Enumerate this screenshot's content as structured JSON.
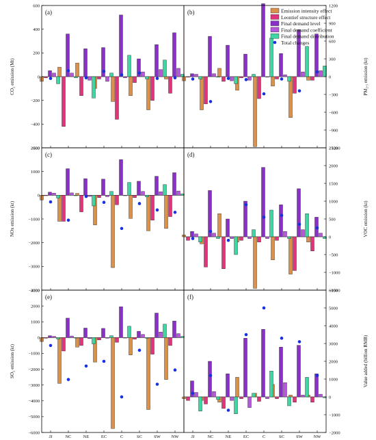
{
  "colors": {
    "Emission intensity effect": "#d9914c",
    "Leontief structure effect": "#e0347b",
    "Final demand level": "#8a2fc8",
    "Final demand coefficient": "#b657dc",
    "Final demand distribution": "#3fd6a4",
    "Total changes": "#1830e0"
  },
  "chart_data": {
    "type": "bar",
    "categories": [
      "JJ",
      "NC",
      "NE",
      "EC",
      "C",
      "SC",
      "SW",
      "NW"
    ],
    "legend": {
      "placement": "top-right of panel (b)",
      "entries": [
        "Emission intensity effect",
        "Leontief structure effect",
        "Final demand level",
        "Final demand coefficient",
        "Final demand distribution",
        "Total changes"
      ]
    },
    "panels": [
      {
        "label": "(a)",
        "ylabel": "CO₂ emission (Mt)",
        "ylim": [
          -600,
          600
        ],
        "ticks": [
          -600,
          -400,
          -200,
          0,
          200,
          400,
          600
        ],
        "series": [
          {
            "name": "Emission intensity effect",
            "values": [
              -40,
              80,
              115,
              -100,
              -210,
              -160,
              -280,
              -20
            ]
          },
          {
            "name": "Leontief structure effect",
            "values": [
              -10,
              -420,
              -160,
              -20,
              -360,
              -50,
              -200,
              -140
            ]
          },
          {
            "name": "Final demand level",
            "values": [
              50,
              360,
              235,
              245,
              520,
              150,
              270,
              370
            ]
          },
          {
            "name": "Final demand coefficient",
            "values": [
              30,
              30,
              -30,
              -40,
              -10,
              40,
              60,
              70
            ]
          },
          {
            "name": "Final demand distribution",
            "values": [
              -60,
              -10,
              -180,
              30,
              180,
              -20,
              140,
              20
            ]
          }
        ],
        "totals": [
          -15,
          50,
          -10,
          45,
          15,
          30,
          -15,
          -10
        ]
      },
      {
        "label": "(b)",
        "ylabel": "PM₂.₅ emission (kt)",
        "ylim": [
          -1200,
          1200
        ],
        "ticks": [
          -1200,
          -900,
          -600,
          -300,
          0,
          300,
          600,
          900,
          1200
        ],
        "series": [
          {
            "name": "Emission intensity effect",
            "values": [
              -70,
              -560,
              140,
              -230,
              -1180,
              -160,
              -690,
              -60
            ]
          },
          {
            "name": "Leontief structure effect",
            "values": [
              -10,
              -460,
              -80,
              -20,
              -370,
              -40,
              -280,
              -60
            ]
          },
          {
            "name": "Final demand level",
            "values": [
              50,
              680,
              530,
              380,
              1230,
              390,
              790,
              720
            ]
          },
          {
            "name": "Final demand coefficient",
            "values": [
              40,
              50,
              -70,
              -60,
              -10,
              30,
              80,
              100
            ]
          },
          {
            "name": "Final demand distribution",
            "values": [
              -40,
              -10,
              -120,
              40,
              650,
              -80,
              510,
              180
            ]
          }
        ],
        "totals": [
          -40,
          -420,
          -30,
          -50,
          -290,
          -40,
          -240,
          80
        ]
      },
      {
        "label": "(c)",
        "ylabel": "NOx emission (kt)",
        "ylim": [
          -4000,
          2000
        ],
        "ticks": [
          -4000,
          -3000,
          -2000,
          -1000,
          0,
          1000,
          2000
        ],
        "series": [
          {
            "name": "Emission intensity effect",
            "values": [
              -200,
              -1100,
              80,
              -1250,
              -3050,
              -980,
              -1500,
              -1400
            ]
          },
          {
            "name": "Leontief structure effect",
            "values": [
              -20,
              -1100,
              -700,
              -100,
              -400,
              -100,
              -1050,
              -900
            ]
          },
          {
            "name": "Final demand level",
            "values": [
              130,
              1120,
              700,
              680,
              1500,
              590,
              800,
              950
            ]
          },
          {
            "name": "Final demand coefficient",
            "values": [
              90,
              100,
              -50,
              -60,
              -20,
              160,
              150,
              180
            ]
          },
          {
            "name": "Final demand distribution",
            "values": [
              -120,
              -20,
              -450,
              160,
              540,
              -70,
              450,
              60
            ]
          }
        ],
        "totals": [
          -280,
          -1050,
          -50,
          -300,
          -1400,
          -350,
          -620,
          -720
        ]
      },
      {
        "label": "(d)",
        "ylabel": "VOC emission (kt)",
        "ylim": [
          -1500,
          2500
        ],
        "ticks": [
          -1500,
          -1000,
          -500,
          0,
          500,
          1000,
          1500,
          2000,
          2500
        ],
        "series": [
          {
            "name": "Emission intensity effect",
            "values": [
              50,
              -200,
              650,
              -150,
              -1450,
              -650,
              -1050,
              -150
            ]
          },
          {
            "name": "Leontief structure effect",
            "values": [
              -100,
              -850,
              -900,
              -100,
              -150,
              -100,
              -950,
              -400
            ]
          },
          {
            "name": "Final demand level",
            "values": [
              150,
              1300,
              500,
              1000,
              1950,
              900,
              1350,
              550
            ]
          },
          {
            "name": "Final demand coefficient",
            "values": [
              80,
              100,
              -50,
              -50,
              -50,
              150,
              200,
              100
            ]
          },
          {
            "name": "Final demand distribution",
            "values": [
              -150,
              -50,
              -500,
              200,
              750,
              -50,
              650,
              -50
            ]
          }
        ],
        "totals": [
          -50,
          150,
          -100,
          900,
          550,
          600,
          350,
          250
        ]
      },
      {
        "label": "(e)",
        "ylabel": "SO₂ emission (kt)",
        "ylim": [
          -6000,
          3000
        ],
        "ticks": [
          -6000,
          -5000,
          -4000,
          -3000,
          -2000,
          -1000,
          0,
          1000,
          2000,
          3000
        ],
        "series": [
          {
            "name": "Emission intensity effect",
            "values": [
              -250,
              -2900,
              -600,
              -1550,
              -5750,
              -1100,
              -4550,
              -2650
            ]
          },
          {
            "name": "Leontief structure effect",
            "values": [
              -40,
              -850,
              -500,
              -150,
              -300,
              -100,
              -1050,
              -500
            ]
          },
          {
            "name": "Final demand level",
            "values": [
              120,
              1230,
              600,
              580,
              1950,
              400,
              1550,
              1050
            ]
          },
          {
            "name": "Final demand coefficient",
            "values": [
              80,
              100,
              -60,
              -40,
              -30,
              200,
              350,
              250
            ]
          },
          {
            "name": "Final demand distribution",
            "values": [
              -90,
              -30,
              -400,
              120,
              720,
              -40,
              850,
              80
            ]
          }
        ],
        "totals": [
          -500,
          -2650,
          -1800,
          -1500,
          -3750,
          -800,
          -2950,
          -2050
        ]
      },
      {
        "label": "(f)",
        "ylabel": "Value added (billion RMB)",
        "ylim": [
          -2000,
          6000
        ],
        "ticks": [
          -2000,
          -1000,
          0,
          1000,
          2000,
          3000,
          4000,
          5000,
          6000
        ],
        "series": [
          {
            "name": "Emission intensity effect",
            "values": [
              -100,
              -200,
              -300,
              1100,
              200,
              700,
              100,
              100
            ]
          },
          {
            "name": "Leontief structure effect",
            "values": [
              -200,
              -400,
              -650,
              -100,
              -250,
              -100,
              -300,
              -300
            ]
          },
          {
            "name": "Final demand level",
            "values": [
              900,
              2000,
              1300,
              3300,
              3800,
              2800,
              2900,
              1300
            ]
          },
          {
            "name": "Final demand coefficient",
            "values": [
              250,
              300,
              -200,
              -600,
              -100,
              800,
              100,
              150
            ]
          },
          {
            "name": "Final demand distribution",
            "values": [
              -800,
              -150,
              -950,
              200,
              1450,
              -500,
              1100,
              -50
            ]
          }
        ],
        "totals": [
          200,
          1200,
          -750,
          3500,
          5000,
          3300,
          3100,
          1200
        ]
      }
    ]
  }
}
